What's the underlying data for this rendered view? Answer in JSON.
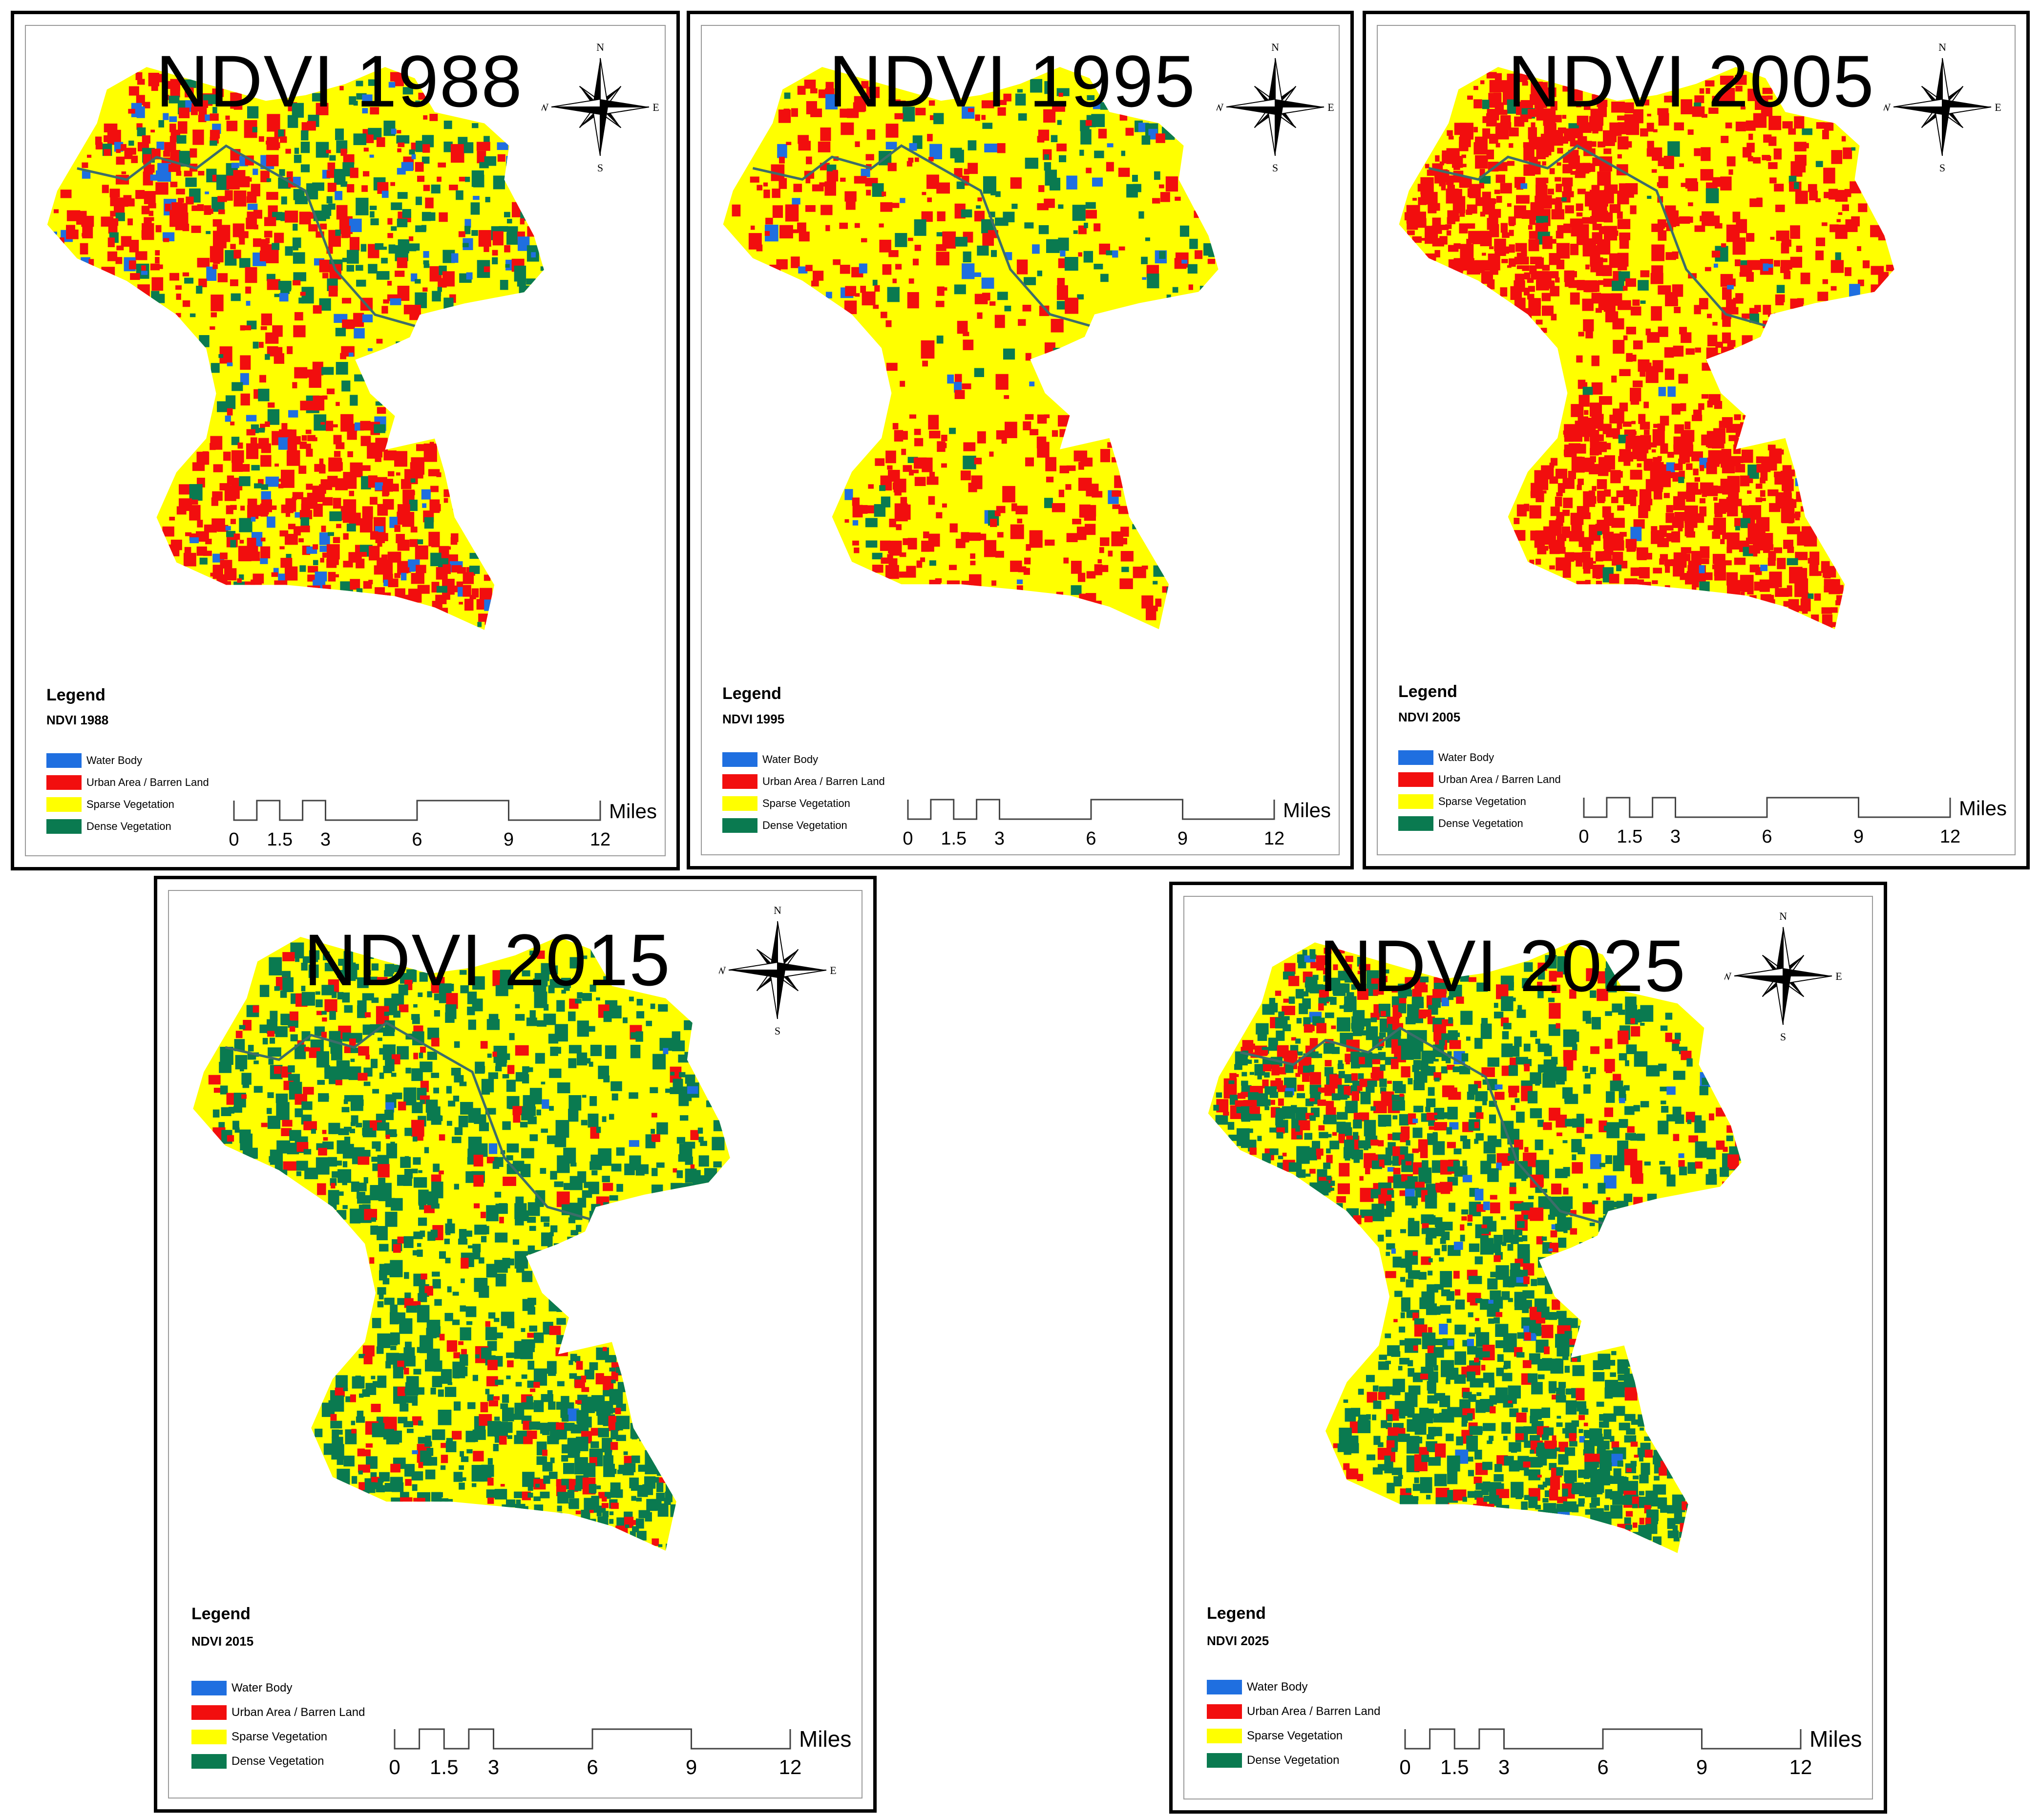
{
  "legend": {
    "heading": "Legend",
    "classes": [
      {
        "label": "Water Body",
        "color": "#1f6fe0"
      },
      {
        "label": "Urban Area / Barren Land",
        "color": "#f20e0e"
      },
      {
        "label": "Sparse Vegetation",
        "color": "#ffff00"
      },
      {
        "label": "Dense Vegetation",
        "color": "#0a7a50"
      }
    ]
  },
  "scale": {
    "unit": "Miles",
    "ticks": [
      "0",
      "1.5",
      "3",
      "6",
      "9",
      "12"
    ]
  },
  "compass": {
    "n": "N",
    "s": "S",
    "e": "E",
    "w": "W",
    "icon": "north-arrow-compass-rose"
  },
  "maps": [
    {
      "title": "NDVI 1988",
      "legend_sub": "NDVI 1988"
    },
    {
      "title": "NDVI 1995",
      "legend_sub": "NDVI 1995"
    },
    {
      "title": "NDVI 2005",
      "legend_sub": "NDVI 2005"
    },
    {
      "title": "NDVI 2015",
      "legend_sub": "NDVI 2015"
    },
    {
      "title": "NDVI 2025",
      "legend_sub": "NDVI 2025"
    }
  ]
}
